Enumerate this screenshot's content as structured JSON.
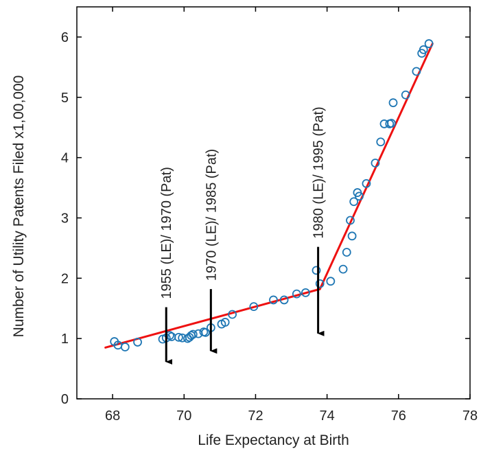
{
  "chart_data": {
    "type": "scatter",
    "xlabel": "Life Expectancy at Birth",
    "ylabel": "Number of Utility Patents Filed x1,00,000",
    "xlim": [
      67,
      78
    ],
    "ylim": [
      0,
      6.5
    ],
    "x_ticks": [
      "68",
      "70",
      "72",
      "74",
      "76",
      "78"
    ],
    "y_ticks": [
      "0",
      "1",
      "2",
      "3",
      "4",
      "5",
      "6"
    ],
    "grid": false,
    "legend": "none",
    "colors": {
      "points": "#1f77b4",
      "fit_line": "#ee1111",
      "arrows": "#000000",
      "axes": "#000000"
    },
    "series": [
      {
        "values": [
          [
            68.05,
            0.95
          ],
          [
            68.15,
            0.89
          ],
          [
            68.35,
            0.86
          ],
          [
            68.7,
            0.94
          ],
          [
            69.4,
            0.99
          ],
          [
            69.5,
            1.01
          ],
          [
            69.6,
            1.05
          ],
          [
            69.65,
            1.03
          ],
          [
            69.85,
            1.02
          ],
          [
            69.95,
            1.01
          ],
          [
            70.1,
            1.0
          ],
          [
            70.15,
            1.02
          ],
          [
            70.2,
            1.05
          ],
          [
            70.25,
            1.07
          ],
          [
            70.4,
            1.08
          ],
          [
            70.55,
            1.11
          ],
          [
            70.6,
            1.1
          ],
          [
            70.75,
            1.18
          ],
          [
            71.05,
            1.24
          ],
          [
            71.15,
            1.27
          ],
          [
            71.35,
            1.4
          ],
          [
            71.95,
            1.53
          ],
          [
            72.5,
            1.64
          ],
          [
            72.8,
            1.64
          ],
          [
            73.15,
            1.74
          ],
          [
            73.4,
            1.76
          ],
          [
            73.7,
            2.13
          ],
          [
            73.8,
            1.91
          ],
          [
            74.1,
            1.95
          ],
          [
            74.45,
            2.15
          ],
          [
            74.55,
            2.43
          ],
          [
            74.65,
            2.96
          ],
          [
            74.7,
            2.7
          ],
          [
            74.75,
            3.27
          ],
          [
            74.85,
            3.42
          ],
          [
            74.9,
            3.36
          ],
          [
            75.1,
            3.57
          ],
          [
            75.35,
            3.91
          ],
          [
            75.5,
            4.26
          ],
          [
            75.6,
            4.56
          ],
          [
            75.75,
            4.56
          ],
          [
            75.8,
            4.57
          ],
          [
            75.85,
            4.91
          ],
          [
            76.2,
            5.04
          ],
          [
            76.5,
            5.43
          ],
          [
            76.65,
            5.73
          ],
          [
            76.7,
            5.79
          ],
          [
            76.85,
            5.89
          ]
        ]
      }
    ],
    "fit_lines": [
      {
        "x": [
          67.8,
          73.8
        ],
        "y": [
          0.85,
          1.82
        ]
      },
      {
        "x": [
          73.8,
          76.95
        ],
        "y": [
          1.82,
          5.89
        ]
      }
    ],
    "annotations": [
      {
        "text": "1955 (LE)/ 1970 (Pat)",
        "x": 69.5,
        "y_from": 1.52,
        "y_to": 0.5
      },
      {
        "text": "1970 (LE)/ 1985 (Pat)",
        "x": 70.75,
        "y_from": 1.82,
        "y_to": 0.68
      },
      {
        "text": "1980 (LE)/ 1995 (Pat)",
        "x": 73.75,
        "y_from": 2.52,
        "y_to": 0.97
      }
    ]
  }
}
